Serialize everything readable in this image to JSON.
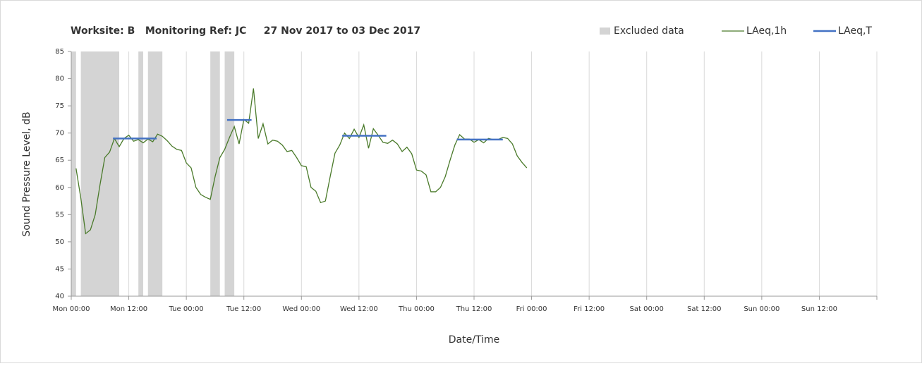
{
  "chart_data": {
    "type": "line",
    "title": "Worksite: B   Monitoring Ref: JC     27 Nov 2017 to 03 Dec 2017",
    "xlabel": "Date/Time",
    "ylabel": "Sound Pressure Level, dB",
    "xlim": [
      0,
      168
    ],
    "xticks": [
      {
        "value": 0,
        "label": "Mon 00:00"
      },
      {
        "value": 12,
        "label": "Mon 12:00"
      },
      {
        "value": 24,
        "label": "Tue 00:00"
      },
      {
        "value": 36,
        "label": "Tue 12:00"
      },
      {
        "value": 48,
        "label": "Wed 00:00"
      },
      {
        "value": 60,
        "label": "Wed 12:00"
      },
      {
        "value": 72,
        "label": "Thu 00:00"
      },
      {
        "value": 84,
        "label": "Thu 12:00"
      },
      {
        "value": 96,
        "label": "Fri 00:00"
      },
      {
        "value": 108,
        "label": "Fri 12:00"
      },
      {
        "value": 120,
        "label": "Sat 00:00"
      },
      {
        "value": 132,
        "label": "Sat 12:00"
      },
      {
        "value": 144,
        "label": "Sun 00:00"
      },
      {
        "value": 156,
        "label": "Sun 12:00"
      }
    ],
    "ylim": [
      40,
      85
    ],
    "yticks": [
      40,
      45,
      50,
      55,
      60,
      65,
      70,
      75,
      80,
      85
    ],
    "grid_x": true,
    "excluded": {
      "name": "Excluded data",
      "color": "#d4d4d4",
      "spans": [
        [
          0,
          1
        ],
        [
          2,
          10
        ],
        [
          14,
          15
        ],
        [
          16,
          19
        ],
        [
          29,
          31
        ],
        [
          32,
          34
        ]
      ]
    },
    "series": [
      {
        "name": "LAeq,1h",
        "color": "#4a7a2a",
        "x": [
          1,
          2,
          3,
          4,
          5,
          6,
          7,
          8,
          9,
          10,
          11,
          12,
          13,
          14,
          15,
          16,
          17,
          18,
          19,
          20,
          21,
          22,
          23,
          24,
          25,
          26,
          27,
          28,
          29,
          30,
          31,
          32,
          33,
          34,
          35,
          36,
          37,
          38,
          39,
          40,
          41,
          42,
          43,
          44,
          45,
          46,
          47,
          48,
          49,
          50,
          51,
          52,
          53,
          54,
          55,
          56,
          57,
          58,
          59,
          60,
          61,
          62,
          63,
          64,
          65,
          66,
          67,
          68,
          69,
          70,
          71,
          72,
          73,
          74,
          75,
          76,
          77,
          78,
          79,
          80,
          81,
          82,
          83,
          84,
          85,
          86,
          87,
          88,
          89,
          90,
          91,
          92,
          93,
          94,
          95
        ],
        "values": [
          63.5,
          58,
          51.5,
          52.2,
          55,
          60.5,
          65.5,
          66.5,
          69,
          67.5,
          69,
          69.6,
          68.5,
          68.8,
          68.2,
          68.9,
          68.4,
          69.8,
          69.4,
          68.6,
          67.6,
          67,
          66.8,
          64.5,
          63.6,
          60,
          58.7,
          58.2,
          57.8,
          62,
          65.5,
          67,
          69.2,
          71.2,
          68,
          72.5,
          71.8,
          78.2,
          69,
          71.7,
          68,
          68.7,
          68.5,
          67.8,
          66.6,
          66.8,
          65.5,
          64,
          63.8,
          60,
          59.3,
          57.2,
          57.5,
          62,
          66.3,
          67.8,
          70,
          69,
          70.7,
          69.2,
          71.5,
          67.2,
          70.8,
          69.6,
          68.3,
          68.1,
          68.7,
          68,
          66.6,
          67.4,
          66.2,
          63.2,
          63,
          62.3,
          59.2,
          59.2,
          60,
          62,
          65,
          67.8,
          69.7,
          68.9,
          68.9,
          68.3,
          68.8,
          68.2,
          69,
          68.8,
          68.8,
          69.2,
          69,
          68,
          65.8,
          64.6,
          63.6
        ]
      },
      {
        "name": "LAeq,T",
        "color": "#4472c4",
        "segments": [
          {
            "x": [
              8.7,
              17.8
            ],
            "value": 69
          },
          {
            "x": [
              32.5,
              37.6
            ],
            "value": 72.4
          },
          {
            "x": [
              56.5,
              65.7
            ],
            "value": 69.5
          },
          {
            "x": [
              80.4,
              90
            ],
            "value": 68.8
          }
        ]
      }
    ]
  }
}
